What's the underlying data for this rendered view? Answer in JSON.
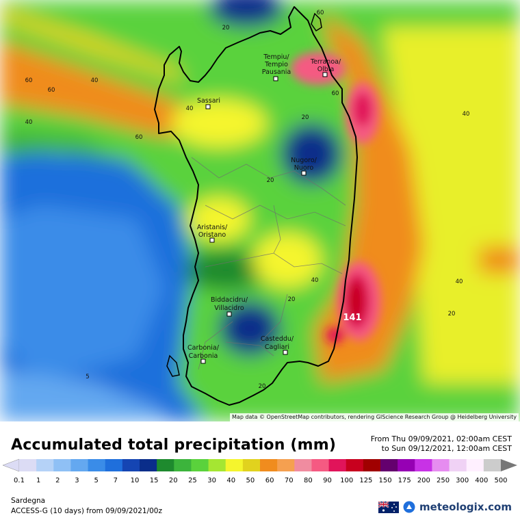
{
  "map": {
    "cities": [
      {
        "line1": "Tempiu/",
        "line2": "Tempio",
        "line3": "Pausania"
      },
      {
        "line1": "Terranoa/",
        "line2": "Olbia"
      },
      {
        "line1": "Sassari"
      },
      {
        "line1": "Nugoro/",
        "line2": "Nuoro"
      },
      {
        "line1": "Aristanis/",
        "line2": "Oristano"
      },
      {
        "line1": "Biddacidru/",
        "line2": "Villacidro"
      },
      {
        "line1": "Casteddu/",
        "line2": "Cagliari"
      },
      {
        "line1": "Carbonia/",
        "line2": "Carbonia"
      }
    ],
    "contour_labels": [
      "20",
      "60",
      "60",
      "40",
      "60",
      "40",
      "40",
      "60",
      "40",
      "20",
      "60",
      "40",
      "20",
      "40",
      "20",
      "20",
      "5",
      "20"
    ],
    "max_value": "141",
    "attribution": "Map data © OpenStreetMap contributors, rendering GIScience Research Group @ Heidelberg University"
  },
  "header": {
    "title": "Accumulated total precipitation (mm)",
    "period_line1": "From Thu 09/09/2021, 02:00am CEST",
    "period_line2": "to Sun 09/12/2021, 12:00am CEST"
  },
  "legend": {
    "labels": [
      "0.1",
      "1",
      "2",
      "3",
      "5",
      "7",
      "10",
      "15",
      "20",
      "25",
      "30",
      "40",
      "50",
      "60",
      "70",
      "80",
      "90",
      "100",
      "125",
      "150",
      "175",
      "200",
      "250",
      "300",
      "400",
      "500"
    ],
    "colors": [
      "#dcdcf5",
      "#b5d2f7",
      "#8fc0f5",
      "#64a8f0",
      "#3a8ce8",
      "#1f6fdc",
      "#1545b3",
      "#0a2d8a",
      "#1e8a2e",
      "#3cb43c",
      "#5ad23c",
      "#a5e632",
      "#f5f52d",
      "#e1d21e",
      "#f08c1e",
      "#f5a050",
      "#f08ca0",
      "#f55a82",
      "#e1145a",
      "#c8001e",
      "#a00000",
      "#64006e",
      "#9600b4",
      "#c832e6",
      "#e68cf0",
      "#f0d2f5",
      "#fff0ff",
      "#cccccc"
    ]
  },
  "footer": {
    "region": "Sardegna",
    "model": "ACCESS-G (10 days) from 09/09/2021/00z",
    "brand": "meteologix.com",
    "flag_icon": "australia-flag-icon",
    "logo_icon": "meteologix-logo-icon"
  }
}
